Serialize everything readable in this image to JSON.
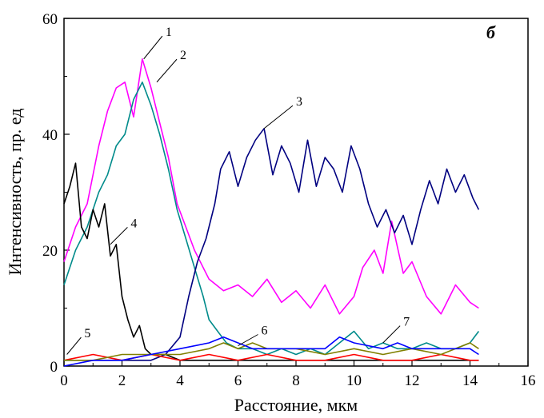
{
  "chart_data": {
    "type": "line",
    "title": "",
    "panel_label": "б",
    "xlabel": "Расстояние, мкм",
    "ylabel": "Интенсивность, пр. ед",
    "xlim": [
      0,
      16
    ],
    "ylim": [
      0,
      60
    ],
    "x_ticks": [
      0,
      2,
      4,
      6,
      8,
      10,
      12,
      14,
      16
    ],
    "y_ticks": [
      0,
      20,
      40,
      60
    ],
    "grid": false,
    "legend": "none",
    "series": [
      {
        "color": "#ff00ff",
        "annotation": "1",
        "x": [
          0,
          0.4,
          0.8,
          1.2,
          1.5,
          1.8,
          2.1,
          2.4,
          2.7,
          3.0,
          3.3,
          3.6,
          3.9,
          4.2,
          4.5,
          4.8,
          5.0,
          5.5,
          6.0,
          6.5,
          7.0,
          7.5,
          8.0,
          8.5,
          9.0,
          9.5,
          10.0,
          10.3,
          10.7,
          11.0,
          11.3,
          11.7,
          12.0,
          12.5,
          13.0,
          13.5,
          14.0,
          14.3
        ],
        "y": [
          18,
          24,
          28,
          38,
          44,
          48,
          49,
          43,
          53,
          48,
          42,
          36,
          28,
          24,
          20,
          17,
          15,
          13,
          14,
          12,
          15,
          11,
          13,
          10,
          14,
          9,
          12,
          17,
          20,
          16,
          25,
          16,
          18,
          12,
          9,
          14,
          11,
          10
        ]
      },
      {
        "color": "#008b8b",
        "annotation": "2",
        "x": [
          0,
          0.4,
          0.8,
          1.2,
          1.5,
          1.8,
          2.1,
          2.4,
          2.7,
          3.0,
          3.3,
          3.6,
          3.9,
          4.2,
          4.5,
          4.8,
          5.0,
          5.3,
          5.6,
          6.0,
          6.5,
          7.0,
          7.5,
          8.0,
          8.5,
          9.0,
          9.5,
          10.0,
          10.5,
          11.0,
          11.5,
          12.0,
          12.5,
          13.0,
          13.5,
          14.0,
          14.3
        ],
        "y": [
          14,
          20,
          24,
          30,
          33,
          38,
          40,
          46,
          49,
          45,
          40,
          34,
          27,
          22,
          17,
          12,
          8,
          6,
          4,
          3,
          3,
          2,
          3,
          2,
          3,
          2,
          4,
          6,
          3,
          4,
          3,
          3,
          4,
          3,
          3,
          4,
          6
        ]
      },
      {
        "color": "#000080",
        "annotation": "3",
        "x": [
          0,
          1,
          2,
          3,
          3.5,
          4,
          4.3,
          4.6,
          4.9,
          5.2,
          5.4,
          5.7,
          6.0,
          6.3,
          6.6,
          6.9,
          7.2,
          7.5,
          7.8,
          8.1,
          8.4,
          8.7,
          9.0,
          9.3,
          9.6,
          9.9,
          10.2,
          10.5,
          10.8,
          11.1,
          11.4,
          11.7,
          12.0,
          12.3,
          12.6,
          12.9,
          13.2,
          13.5,
          13.8,
          14.1,
          14.3
        ],
        "y": [
          1,
          1,
          1,
          1,
          2,
          5,
          12,
          18,
          22,
          28,
          34,
          37,
          31,
          36,
          39,
          41,
          33,
          38,
          35,
          30,
          39,
          31,
          36,
          34,
          30,
          38,
          34,
          28,
          24,
          27,
          23,
          26,
          21,
          27,
          32,
          28,
          34,
          30,
          33,
          29,
          27
        ]
      },
      {
        "color": "#000000",
        "annotation": "4",
        "x": [
          0,
          0.2,
          0.4,
          0.6,
          0.8,
          1.0,
          1.2,
          1.4,
          1.6,
          1.8,
          2.0,
          2.2,
          2.4,
          2.6,
          2.8,
          3.0,
          3.5,
          4.0,
          4.5,
          5.0,
          6.0,
          7.0,
          8.0,
          9.0,
          10.0,
          11.0,
          12.0,
          13.0,
          14.0,
          14.3
        ],
        "y": [
          28,
          31,
          35,
          24,
          22,
          27,
          24,
          28,
          19,
          21,
          12,
          8,
          5,
          7,
          3,
          2,
          2,
          1,
          1,
          1,
          1,
          1,
          1,
          1,
          1,
          1,
          1,
          1,
          1,
          1
        ]
      },
      {
        "color": "#ff0000",
        "annotation": "5",
        "x": [
          0,
          1,
          2,
          3,
          4,
          5,
          6,
          7,
          8,
          9,
          10,
          11,
          12,
          13,
          14,
          14.3
        ],
        "y": [
          1,
          2,
          1,
          2,
          1,
          2,
          1,
          2,
          1,
          1,
          2,
          1,
          1,
          2,
          1,
          1
        ]
      },
      {
        "color": "#808000",
        "annotation": "6",
        "x": [
          0,
          1,
          2,
          3,
          4,
          5,
          5.5,
          6,
          6.5,
          7,
          8,
          9,
          10,
          11,
          12,
          13,
          14,
          14.3
        ],
        "y": [
          1,
          1,
          2,
          2,
          2,
          3,
          4,
          3,
          4,
          3,
          3,
          2,
          3,
          2,
          3,
          2,
          4,
          3
        ]
      },
      {
        "color": "#0000ff",
        "annotation": "7",
        "x": [
          0,
          1,
          2,
          3,
          4,
          5,
          5.5,
          6,
          6.5,
          7,
          8,
          9,
          9.5,
          10,
          11,
          11.5,
          12,
          13,
          14,
          14.3
        ],
        "y": [
          0,
          1,
          1,
          2,
          3,
          4,
          5,
          4,
          3,
          3,
          3,
          3,
          5,
          4,
          3,
          4,
          3,
          3,
          3,
          2
        ]
      }
    ]
  }
}
